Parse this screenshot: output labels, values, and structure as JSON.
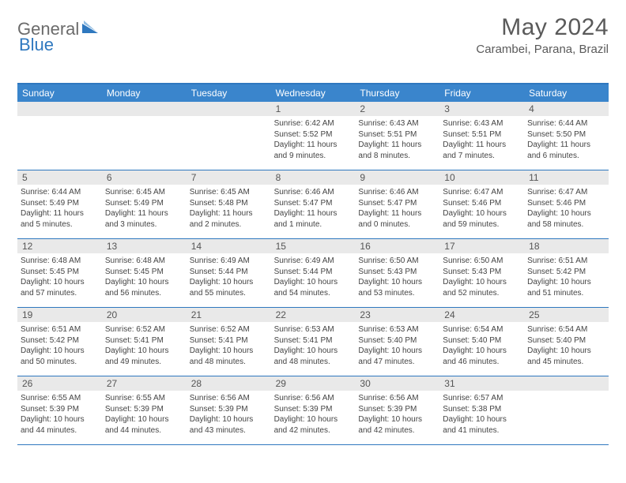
{
  "brand": {
    "word1": "General",
    "word2": "Blue",
    "color_general": "#6b6b6b",
    "color_blue": "#2f78bf",
    "mark_color": "#2f78bf"
  },
  "title": "May 2024",
  "location": "Carambei, Parana, Brazil",
  "colors": {
    "header_bar": "#3a85cc",
    "rule": "#2f78bf",
    "daynum_bg": "#e9e9e9",
    "text": "#444444"
  },
  "days_of_week": [
    "Sunday",
    "Monday",
    "Tuesday",
    "Wednesday",
    "Thursday",
    "Friday",
    "Saturday"
  ],
  "weeks": [
    [
      {
        "n": "",
        "lines": []
      },
      {
        "n": "",
        "lines": []
      },
      {
        "n": "",
        "lines": []
      },
      {
        "n": "1",
        "lines": [
          "Sunrise: 6:42 AM",
          "Sunset: 5:52 PM",
          "Daylight: 11 hours and 9 minutes."
        ]
      },
      {
        "n": "2",
        "lines": [
          "Sunrise: 6:43 AM",
          "Sunset: 5:51 PM",
          "Daylight: 11 hours and 8 minutes."
        ]
      },
      {
        "n": "3",
        "lines": [
          "Sunrise: 6:43 AM",
          "Sunset: 5:51 PM",
          "Daylight: 11 hours and 7 minutes."
        ]
      },
      {
        "n": "4",
        "lines": [
          "Sunrise: 6:44 AM",
          "Sunset: 5:50 PM",
          "Daylight: 11 hours and 6 minutes."
        ]
      }
    ],
    [
      {
        "n": "5",
        "lines": [
          "Sunrise: 6:44 AM",
          "Sunset: 5:49 PM",
          "Daylight: 11 hours and 5 minutes."
        ]
      },
      {
        "n": "6",
        "lines": [
          "Sunrise: 6:45 AM",
          "Sunset: 5:49 PM",
          "Daylight: 11 hours and 3 minutes."
        ]
      },
      {
        "n": "7",
        "lines": [
          "Sunrise: 6:45 AM",
          "Sunset: 5:48 PM",
          "Daylight: 11 hours and 2 minutes."
        ]
      },
      {
        "n": "8",
        "lines": [
          "Sunrise: 6:46 AM",
          "Sunset: 5:47 PM",
          "Daylight: 11 hours and 1 minute."
        ]
      },
      {
        "n": "9",
        "lines": [
          "Sunrise: 6:46 AM",
          "Sunset: 5:47 PM",
          "Daylight: 11 hours and 0 minutes."
        ]
      },
      {
        "n": "10",
        "lines": [
          "Sunrise: 6:47 AM",
          "Sunset: 5:46 PM",
          "Daylight: 10 hours and 59 minutes."
        ]
      },
      {
        "n": "11",
        "lines": [
          "Sunrise: 6:47 AM",
          "Sunset: 5:46 PM",
          "Daylight: 10 hours and 58 minutes."
        ]
      }
    ],
    [
      {
        "n": "12",
        "lines": [
          "Sunrise: 6:48 AM",
          "Sunset: 5:45 PM",
          "Daylight: 10 hours and 57 minutes."
        ]
      },
      {
        "n": "13",
        "lines": [
          "Sunrise: 6:48 AM",
          "Sunset: 5:45 PM",
          "Daylight: 10 hours and 56 minutes."
        ]
      },
      {
        "n": "14",
        "lines": [
          "Sunrise: 6:49 AM",
          "Sunset: 5:44 PM",
          "Daylight: 10 hours and 55 minutes."
        ]
      },
      {
        "n": "15",
        "lines": [
          "Sunrise: 6:49 AM",
          "Sunset: 5:44 PM",
          "Daylight: 10 hours and 54 minutes."
        ]
      },
      {
        "n": "16",
        "lines": [
          "Sunrise: 6:50 AM",
          "Sunset: 5:43 PM",
          "Daylight: 10 hours and 53 minutes."
        ]
      },
      {
        "n": "17",
        "lines": [
          "Sunrise: 6:50 AM",
          "Sunset: 5:43 PM",
          "Daylight: 10 hours and 52 minutes."
        ]
      },
      {
        "n": "18",
        "lines": [
          "Sunrise: 6:51 AM",
          "Sunset: 5:42 PM",
          "Daylight: 10 hours and 51 minutes."
        ]
      }
    ],
    [
      {
        "n": "19",
        "lines": [
          "Sunrise: 6:51 AM",
          "Sunset: 5:42 PM",
          "Daylight: 10 hours and 50 minutes."
        ]
      },
      {
        "n": "20",
        "lines": [
          "Sunrise: 6:52 AM",
          "Sunset: 5:41 PM",
          "Daylight: 10 hours and 49 minutes."
        ]
      },
      {
        "n": "21",
        "lines": [
          "Sunrise: 6:52 AM",
          "Sunset: 5:41 PM",
          "Daylight: 10 hours and 48 minutes."
        ]
      },
      {
        "n": "22",
        "lines": [
          "Sunrise: 6:53 AM",
          "Sunset: 5:41 PM",
          "Daylight: 10 hours and 48 minutes."
        ]
      },
      {
        "n": "23",
        "lines": [
          "Sunrise: 6:53 AM",
          "Sunset: 5:40 PM",
          "Daylight: 10 hours and 47 minutes."
        ]
      },
      {
        "n": "24",
        "lines": [
          "Sunrise: 6:54 AM",
          "Sunset: 5:40 PM",
          "Daylight: 10 hours and 46 minutes."
        ]
      },
      {
        "n": "25",
        "lines": [
          "Sunrise: 6:54 AM",
          "Sunset: 5:40 PM",
          "Daylight: 10 hours and 45 minutes."
        ]
      }
    ],
    [
      {
        "n": "26",
        "lines": [
          "Sunrise: 6:55 AM",
          "Sunset: 5:39 PM",
          "Daylight: 10 hours and 44 minutes."
        ]
      },
      {
        "n": "27",
        "lines": [
          "Sunrise: 6:55 AM",
          "Sunset: 5:39 PM",
          "Daylight: 10 hours and 44 minutes."
        ]
      },
      {
        "n": "28",
        "lines": [
          "Sunrise: 6:56 AM",
          "Sunset: 5:39 PM",
          "Daylight: 10 hours and 43 minutes."
        ]
      },
      {
        "n": "29",
        "lines": [
          "Sunrise: 6:56 AM",
          "Sunset: 5:39 PM",
          "Daylight: 10 hours and 42 minutes."
        ]
      },
      {
        "n": "30",
        "lines": [
          "Sunrise: 6:56 AM",
          "Sunset: 5:39 PM",
          "Daylight: 10 hours and 42 minutes."
        ]
      },
      {
        "n": "31",
        "lines": [
          "Sunrise: 6:57 AM",
          "Sunset: 5:38 PM",
          "Daylight: 10 hours and 41 minutes."
        ]
      },
      {
        "n": "",
        "lines": []
      }
    ]
  ]
}
